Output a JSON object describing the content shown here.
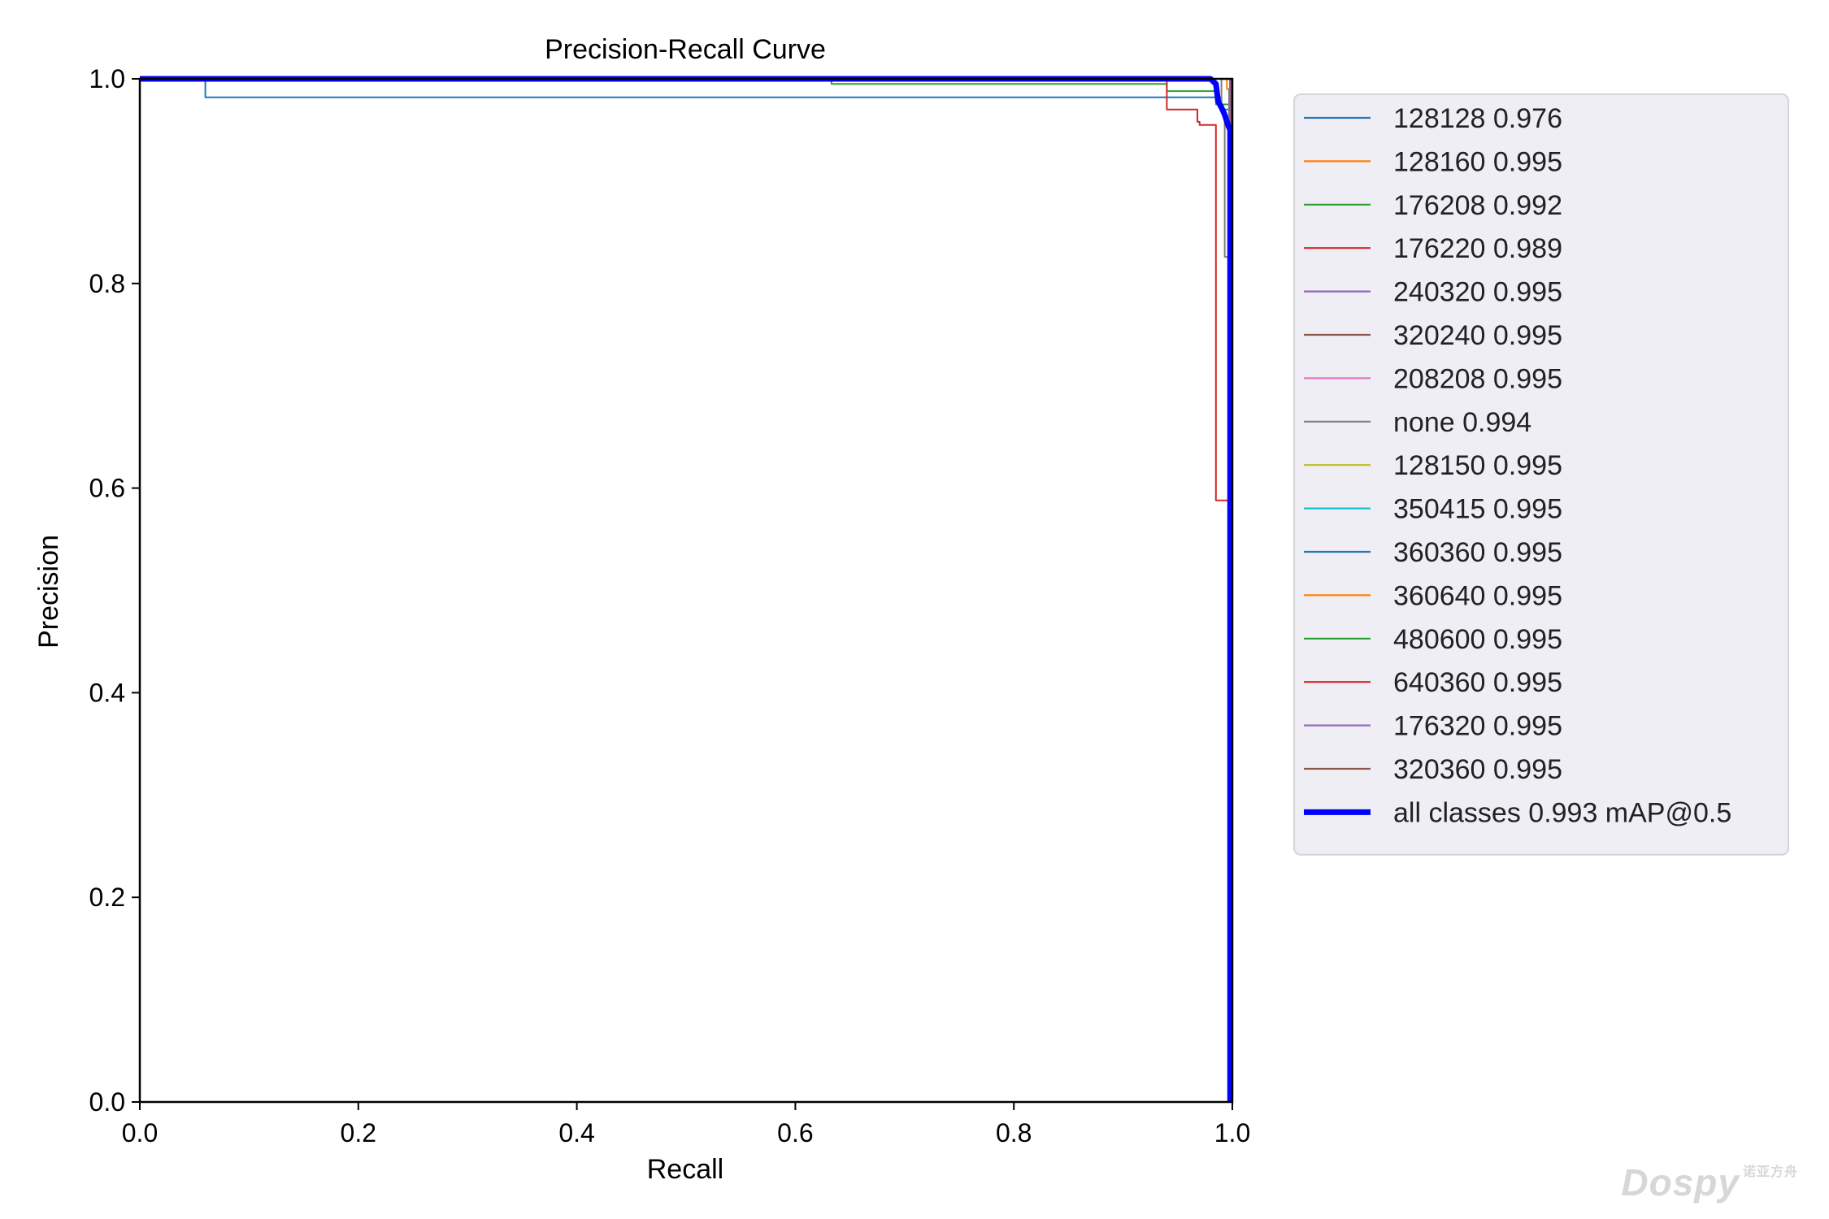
{
  "chart_data": {
    "type": "line",
    "title": "Precision-Recall Curve",
    "xlabel": "Recall",
    "ylabel": "Precision",
    "xlim": [
      0.0,
      1.0
    ],
    "ylim": [
      0.0,
      1.0
    ],
    "xticks": [
      "0.0",
      "0.2",
      "0.4",
      "0.6",
      "0.8",
      "1.0"
    ],
    "yticks": [
      "0.0",
      "0.2",
      "0.4",
      "0.6",
      "0.8",
      "1.0"
    ],
    "grid": false,
    "legend_placement": "outside-upper-right",
    "series": [
      {
        "name": "128128 0.976",
        "color": "#1f77b4",
        "x": [
          0.0,
          0.06,
          0.06,
          0.99,
          0.99,
          1.0,
          1.0
        ],
        "y": [
          1.0,
          1.0,
          0.982,
          0.982,
          0.97,
          0.97,
          0.0
        ]
      },
      {
        "name": "128160 0.995",
        "color": "#ff7f0e",
        "x": [
          0.0,
          0.995,
          0.995,
          1.0,
          1.0
        ],
        "y": [
          1.0,
          1.0,
          0.99,
          0.99,
          0.0
        ]
      },
      {
        "name": "176208 0.992",
        "color": "#2ca02c",
        "x": [
          0.0,
          0.633,
          0.633,
          0.94,
          0.94,
          0.985,
          0.985,
          1.0,
          1.0
        ],
        "y": [
          1.0,
          1.0,
          0.995,
          0.995,
          0.988,
          0.988,
          0.975,
          0.975,
          0.0
        ]
      },
      {
        "name": "176220 0.989",
        "color": "#d62728",
        "x": [
          0.0,
          0.94,
          0.94,
          0.968,
          0.968,
          0.97,
          0.97,
          0.985,
          0.985,
          0.985,
          0.985,
          0.997,
          0.997,
          1.0
        ],
        "y": [
          1.0,
          1.0,
          0.97,
          0.97,
          0.958,
          0.958,
          0.955,
          0.955,
          0.955,
          0.588,
          0.588,
          0.588,
          0.0,
          0.0
        ]
      },
      {
        "name": "240320 0.995",
        "color": "#9467bd",
        "x": [
          0.0,
          0.998,
          0.998
        ],
        "y": [
          1.0,
          1.0,
          0.0
        ]
      },
      {
        "name": "320240 0.995",
        "color": "#8c564b",
        "x": [
          0.0,
          0.999,
          0.999
        ],
        "y": [
          1.0,
          1.0,
          0.0
        ]
      },
      {
        "name": "208208 0.995",
        "color": "#e377c2",
        "x": [
          0.0,
          0.998,
          0.998
        ],
        "y": [
          1.0,
          1.0,
          0.0
        ]
      },
      {
        "name": "none 0.994",
        "color": "#7f7f7f",
        "x": [
          0.0,
          0.99,
          0.99,
          0.993,
          0.993,
          0.997,
          0.997,
          0.999,
          0.999
        ],
        "y": [
          1.0,
          1.0,
          0.97,
          0.97,
          0.826,
          0.826,
          0.99,
          0.99,
          0.0
        ]
      },
      {
        "name": "128150 0.995",
        "color": "#bcbd22",
        "x": [
          0.0,
          0.998,
          0.998
        ],
        "y": [
          1.0,
          1.0,
          0.0
        ]
      },
      {
        "name": "350415 0.995",
        "color": "#17becf",
        "x": [
          0.0,
          0.998,
          0.998
        ],
        "y": [
          1.0,
          1.0,
          0.0
        ]
      },
      {
        "name": "360360 0.995",
        "color": "#1f77b4",
        "x": [
          0.0,
          0.998,
          0.998
        ],
        "y": [
          1.0,
          1.0,
          0.0
        ]
      },
      {
        "name": "360640 0.995",
        "color": "#ff7f0e",
        "x": [
          0.0,
          0.998,
          0.998
        ],
        "y": [
          1.0,
          1.0,
          0.0
        ]
      },
      {
        "name": "480600 0.995",
        "color": "#2ca02c",
        "x": [
          0.0,
          0.998,
          0.998
        ],
        "y": [
          1.0,
          1.0,
          0.0
        ]
      },
      {
        "name": "640360 0.995",
        "color": "#d62728",
        "x": [
          0.0,
          0.998,
          0.998
        ],
        "y": [
          1.0,
          1.0,
          0.0
        ]
      },
      {
        "name": "176320 0.995",
        "color": "#9467bd",
        "x": [
          0.0,
          0.998,
          0.998
        ],
        "y": [
          1.0,
          1.0,
          0.0
        ]
      },
      {
        "name": "320360 0.995",
        "color": "#8c564b",
        "x": [
          0.0,
          0.999,
          0.999
        ],
        "y": [
          1.0,
          1.0,
          0.0
        ]
      },
      {
        "name": "all classes 0.993 mAP@0.5",
        "color": "#0000ff",
        "bold": true,
        "x": [
          0.0,
          0.98,
          0.985,
          0.987,
          0.99,
          0.993,
          0.996,
          0.998,
          0.998
        ],
        "y": [
          1.0,
          1.0,
          0.995,
          0.978,
          0.972,
          0.965,
          0.955,
          0.95,
          0.0
        ]
      }
    ]
  },
  "watermark": {
    "text": "Dospy",
    "subtext": "诺亚方舟"
  }
}
